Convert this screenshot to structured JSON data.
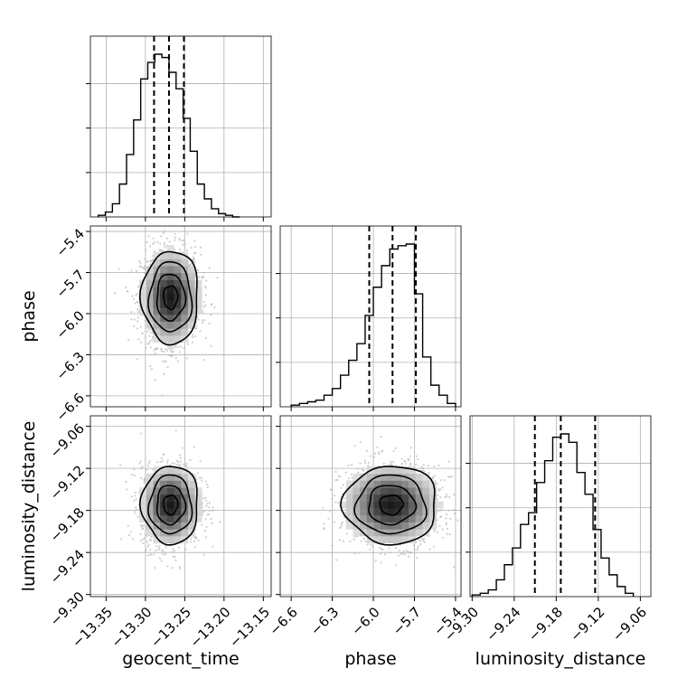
{
  "chart_data": {
    "type": "corner",
    "parameters": [
      "geocent_time",
      "phase",
      "luminosity_distance"
    ],
    "axes": {
      "geocent_time": {
        "label": "geocent_time",
        "range": [
          -13.37,
          -13.14
        ],
        "ticks": [
          -13.35,
          -13.3,
          -13.25,
          -13.2,
          -13.15
        ],
        "tick_labels": [
          "−13.35",
          "−13.30",
          "−13.25",
          "−13.20",
          "−13.15"
        ]
      },
      "phase": {
        "label": "phase",
        "range": [
          -6.68,
          -5.36
        ],
        "ticks": [
          -6.6,
          -6.3,
          -6.0,
          -5.7,
          -5.4
        ],
        "tick_labels": [
          "−6.6",
          "−6.3",
          "−6.0",
          "−5.7",
          "−5.4"
        ]
      },
      "luminosity_distance": {
        "label": "luminosity_distance",
        "range": [
          -9.303,
          -9.045
        ],
        "ticks": [
          -9.3,
          -9.24,
          -9.18,
          -9.12,
          -9.06
        ],
        "tick_labels": [
          "−9.30",
          "−9.24",
          "−9.18",
          "−9.12",
          "−9.06"
        ]
      }
    },
    "histograms": [
      {
        "param": "geocent_time",
        "bin_edges": [
          -13.36,
          -13.351,
          -13.342,
          -13.333,
          -13.324,
          -13.315,
          -13.306,
          -13.297,
          -13.288,
          -13.279,
          -13.27,
          -13.261,
          -13.252,
          -13.243,
          -13.234,
          -13.225,
          -13.216,
          -13.207,
          -13.198,
          -13.189,
          -13.18
        ],
        "counts": [
          0.01,
          0.03,
          0.08,
          0.2,
          0.38,
          0.59,
          0.84,
          0.94,
          0.99,
          0.97,
          0.88,
          0.78,
          0.6,
          0.4,
          0.2,
          0.11,
          0.05,
          0.02,
          0.01,
          0.0
        ],
        "quantiles": [
          -13.289,
          -13.27,
          -13.251
        ]
      },
      {
        "param": "phase",
        "bin_edges": [
          -6.6,
          -6.54,
          -6.48,
          -6.42,
          -6.36,
          -6.3,
          -6.24,
          -6.18,
          -6.12,
          -6.06,
          -6.0,
          -5.94,
          -5.88,
          -5.82,
          -5.76,
          -5.7,
          -5.64,
          -5.58,
          -5.52,
          -5.46,
          -5.4
        ],
        "counts": [
          0.01,
          0.02,
          0.03,
          0.04,
          0.07,
          0.11,
          0.19,
          0.28,
          0.38,
          0.55,
          0.72,
          0.85,
          0.95,
          0.97,
          0.98,
          0.68,
          0.3,
          0.13,
          0.07,
          0.02
        ],
        "quantiles": [
          -6.03,
          -5.86,
          -5.69
        ]
      },
      {
        "param": "luminosity_distance",
        "bin_edges": [
          -9.3,
          -9.2885,
          -9.277,
          -9.2655,
          -9.254,
          -9.2425,
          -9.231,
          -9.2195,
          -9.208,
          -9.1965,
          -9.185,
          -9.1735,
          -9.162,
          -9.1505,
          -9.139,
          -9.1275,
          -9.116,
          -9.1045,
          -9.093,
          -9.0815,
          -9.07
        ],
        "counts": [
          0.01,
          0.02,
          0.04,
          0.1,
          0.19,
          0.29,
          0.43,
          0.5,
          0.68,
          0.81,
          0.95,
          0.97,
          0.92,
          0.74,
          0.61,
          0.4,
          0.23,
          0.13,
          0.06,
          0.02
        ],
        "quantiles": [
          -9.2105,
          -9.1735,
          -9.1245
        ]
      }
    ],
    "density_2d": [
      {
        "x": "geocent_time",
        "y": "phase",
        "mean": [
          -13.268,
          -5.88
        ],
        "std": [
          0.018,
          0.17
        ],
        "corr": 0.0,
        "contour_levels_sigma": [
          0.5,
          1.0,
          1.5,
          2.0
        ]
      },
      {
        "x": "geocent_time",
        "y": "luminosity_distance",
        "mean": [
          -13.268,
          -9.172
        ],
        "std": [
          0.018,
          0.028
        ],
        "corr": 0.05,
        "contour_levels_sigma": [
          0.5,
          1.0,
          1.5,
          2.0
        ]
      },
      {
        "x": "phase",
        "y": "luminosity_distance",
        "mean": [
          -5.87,
          -9.172
        ],
        "std": [
          0.17,
          0.028
        ],
        "corr": 0.0,
        "contour_levels_sigma": [
          0.5,
          1.0,
          1.5,
          2.0
        ]
      }
    ],
    "grid": true,
    "colors": {
      "line": "#000000",
      "grid": "#b0b0b0",
      "scatter": "#bbbbbb"
    }
  }
}
